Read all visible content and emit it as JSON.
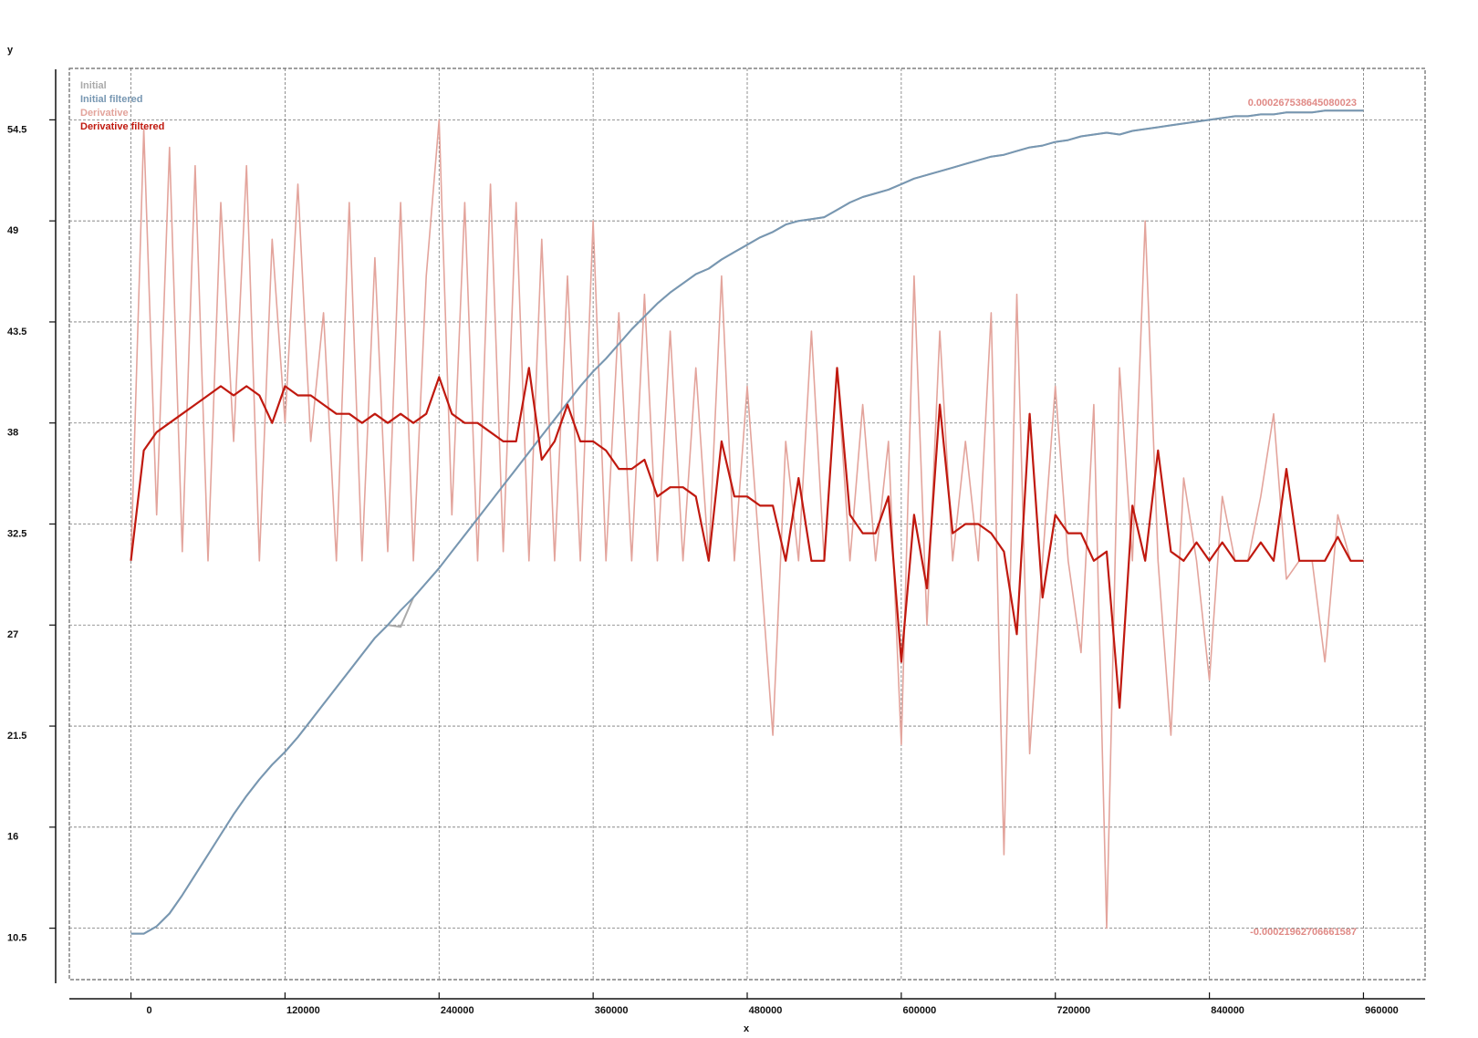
{
  "chart_data": {
    "type": "line",
    "xlabel": "x",
    "ylabel": "y",
    "xlim": [
      -48000,
      1008000
    ],
    "ylim": [
      7.7,
      57.3
    ],
    "xticks": [
      0,
      120000,
      240000,
      360000,
      480000,
      600000,
      720000,
      840000,
      960000
    ],
    "yticks": [
      10.5,
      16,
      21.5,
      27,
      32.5,
      38,
      43.5,
      49,
      54.5
    ],
    "grid": true,
    "legend": "upper left",
    "annotations": [
      "0.000267538645080023",
      "-0.00021962706661587"
    ],
    "x": [
      0,
      10000,
      20000,
      30000,
      40000,
      50000,
      60000,
      70000,
      80000,
      90000,
      100000,
      110000,
      120000,
      130000,
      140000,
      150000,
      160000,
      170000,
      180000,
      190000,
      200000,
      210000,
      220000,
      230000,
      240000,
      250000,
      260000,
      270000,
      280000,
      290000,
      300000,
      310000,
      320000,
      330000,
      340000,
      350000,
      360000,
      370000,
      380000,
      390000,
      400000,
      410000,
      420000,
      430000,
      440000,
      450000,
      460000,
      470000,
      480000,
      490000,
      500000,
      510000,
      520000,
      530000,
      540000,
      550000,
      560000,
      570000,
      580000,
      590000,
      600000,
      610000,
      620000,
      630000,
      640000,
      650000,
      660000,
      670000,
      680000,
      690000,
      700000,
      710000,
      720000,
      730000,
      740000,
      750000,
      760000,
      770000,
      780000,
      790000,
      800000,
      810000,
      820000,
      830000,
      840000,
      850000,
      860000,
      870000,
      880000,
      890000,
      900000,
      910000,
      920000,
      930000,
      940000,
      950000,
      960000
    ],
    "series": [
      {
        "name": "Derivative",
        "color": "#e3a49c",
        "values": [
          30.5,
          54,
          33,
          53,
          31,
          52,
          30.5,
          50,
          37,
          52,
          30.5,
          48,
          38,
          51,
          37,
          44,
          30.5,
          50,
          30.5,
          47,
          31,
          50,
          30.5,
          46,
          54.5,
          33,
          50,
          30.5,
          51,
          31,
          50,
          30.5,
          48,
          30.5,
          46,
          30.5,
          49,
          30.5,
          44,
          30.5,
          45,
          30.5,
          43,
          30.5,
          41,
          30.5,
          46,
          30.5,
          40,
          30.5,
          21,
          37,
          30.5,
          43,
          30.5,
          41,
          30.5,
          39,
          30.5,
          37,
          20.5,
          46,
          27,
          43,
          30.5,
          37,
          30.5,
          44,
          14.5,
          45,
          20,
          30.5,
          40,
          30.5,
          25.5,
          39,
          10.5,
          41,
          30.5,
          49,
          30.5,
          21,
          35,
          30.5,
          24,
          34,
          30.5,
          30.5,
          34,
          38.5,
          29.5,
          30.5,
          30.5,
          25,
          33,
          30.5,
          30.5
        ]
      },
      {
        "name": "Initial",
        "color": "#aaaaaa",
        "values": [
          10.2,
          10.2,
          10.6,
          11.3,
          12.3,
          13.4,
          14.5,
          15.6,
          16.7,
          17.7,
          18.6,
          19.4,
          20.1,
          20.9,
          21.8,
          22.7,
          23.6,
          24.5,
          25.4,
          26.3,
          27.0,
          26.9,
          28.5,
          29.3,
          30.1,
          31.0,
          31.9,
          32.8,
          33.7,
          34.6,
          35.5,
          36.4,
          37.3,
          38.2,
          39.1,
          40.0,
          40.8,
          41.5,
          42.3,
          43.1,
          43.8,
          44.5,
          45.1,
          45.6,
          46.1,
          46.4,
          46.9,
          47.3,
          47.7,
          48.1,
          48.4,
          48.8,
          49.0,
          49.1,
          49.2,
          49.6,
          50.0,
          50.3,
          50.5,
          50.7,
          51.0,
          51.3,
          51.5,
          51.7,
          51.9,
          52.1,
          52.3,
          52.5,
          52.6,
          52.8,
          53.0,
          53.1,
          53.3,
          53.4,
          53.6,
          53.7,
          53.8,
          53.7,
          53.9,
          54.0,
          54.1,
          54.2,
          54.3,
          54.4,
          54.5,
          54.6,
          54.7,
          54.7,
          54.8,
          54.8,
          54.9,
          54.9,
          54.9,
          55.0,
          55.0,
          55.0,
          55.0
        ]
      },
      {
        "name": "Initial filtered",
        "color": "#7797b2",
        "values": [
          10.2,
          10.2,
          10.6,
          11.3,
          12.3,
          13.4,
          14.5,
          15.6,
          16.7,
          17.7,
          18.6,
          19.4,
          20.1,
          20.9,
          21.8,
          22.7,
          23.6,
          24.5,
          25.4,
          26.3,
          27.0,
          27.8,
          28.5,
          29.3,
          30.1,
          31.0,
          31.9,
          32.8,
          33.7,
          34.6,
          35.5,
          36.4,
          37.3,
          38.2,
          39.1,
          40.0,
          40.8,
          41.5,
          42.3,
          43.1,
          43.8,
          44.5,
          45.1,
          45.6,
          46.1,
          46.4,
          46.9,
          47.3,
          47.7,
          48.1,
          48.4,
          48.8,
          49.0,
          49.1,
          49.2,
          49.6,
          50.0,
          50.3,
          50.5,
          50.7,
          51.0,
          51.3,
          51.5,
          51.7,
          51.9,
          52.1,
          52.3,
          52.5,
          52.6,
          52.8,
          53.0,
          53.1,
          53.3,
          53.4,
          53.6,
          53.7,
          53.8,
          53.7,
          53.9,
          54.0,
          54.1,
          54.2,
          54.3,
          54.4,
          54.5,
          54.6,
          54.7,
          54.7,
          54.8,
          54.8,
          54.9,
          54.9,
          54.9,
          55.0,
          55.0,
          55.0,
          55.0
        ]
      },
      {
        "name": "Derivative filtered",
        "color": "#c0190f",
        "values": [
          30.5,
          36.5,
          37.5,
          38,
          38.5,
          39,
          39.5,
          40,
          39.5,
          40,
          39.5,
          38,
          40,
          39.5,
          39.5,
          39,
          38.5,
          38.5,
          38,
          38.5,
          38,
          38.5,
          38,
          38.5,
          40.5,
          38.5,
          38,
          38,
          37.5,
          37,
          37,
          41,
          36,
          37,
          39,
          37,
          37,
          36.5,
          35.5,
          35.5,
          36,
          34,
          34.5,
          34.5,
          34,
          30.5,
          37,
          34,
          34,
          33.5,
          33.5,
          30.5,
          35,
          30.5,
          30.5,
          41,
          33,
          32,
          32,
          34,
          25,
          33,
          29,
          39,
          32,
          32.5,
          32.5,
          32,
          31,
          26.5,
          38.5,
          28.5,
          33,
          32,
          32,
          30.5,
          31,
          22.5,
          33.5,
          30.5,
          36.5,
          31,
          30.5,
          31.5,
          30.5,
          31.5,
          30.5,
          30.5,
          31.5,
          30.5,
          35.5,
          30.5,
          30.5,
          30.5,
          31.8,
          30.5,
          30.5
        ]
      }
    ]
  }
}
